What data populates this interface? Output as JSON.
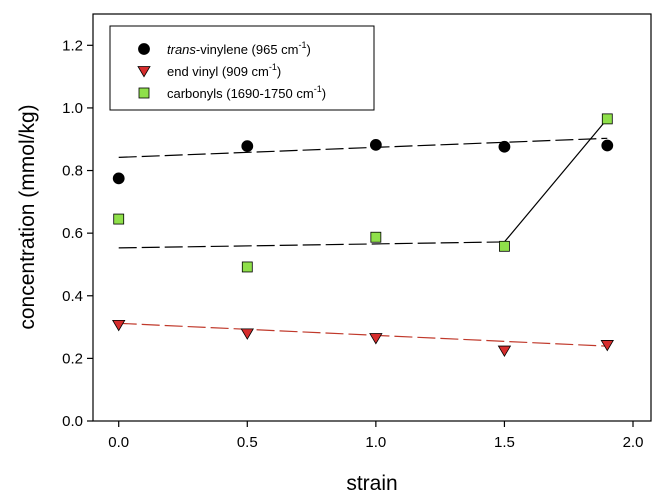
{
  "chart_data": {
    "type": "scatter",
    "xlabel": "strain",
    "ylabel": "concentration (mmol/kg)",
    "xlim": [
      -0.1,
      2.07
    ],
    "ylim": [
      0.0,
      1.3
    ],
    "x_ticks": [
      0.0,
      0.5,
      1.0,
      1.5,
      2.0
    ],
    "x_tick_labels": [
      "0.0",
      "0.5",
      "1.0",
      "1.5",
      "2.0"
    ],
    "y_ticks": [
      0.0,
      0.2,
      0.4,
      0.6,
      0.8,
      1.0,
      1.2
    ],
    "y_tick_labels": [
      "0.0",
      "0.2",
      "0.4",
      "0.6",
      "0.8",
      "1.0",
      "1.2"
    ],
    "grid": false,
    "legend_position": "top-left",
    "series": [
      {
        "name_italic": "trans",
        "name_main": "-vinylene (965 cm",
        "name_sup": "-1",
        "name_tail": ")",
        "marker": "circle",
        "color": "#000000",
        "x": [
          0.0,
          0.5,
          1.0,
          1.5,
          1.9
        ],
        "y": [
          0.775,
          0.878,
          0.882,
          0.876,
          0.88
        ],
        "fit_line": {
          "x": [
            0.0,
            1.9
          ],
          "y": [
            0.842,
            0.903
          ],
          "color": "#000000",
          "style": "long-dash"
        }
      },
      {
        "name_italic": "",
        "name_main": "end vinyl (909 cm",
        "name_sup": "-1",
        "name_tail": ")",
        "marker": "triangle-down",
        "color": "#d62d2d",
        "x": [
          0.0,
          0.5,
          1.0,
          1.5,
          1.9
        ],
        "y": [
          0.307,
          0.28,
          0.265,
          0.225,
          0.243
        ],
        "fit_line": {
          "x": [
            0.0,
            1.9
          ],
          "y": [
            0.312,
            0.239
          ],
          "color": "#c0392b",
          "style": "long-dash"
        }
      },
      {
        "name_italic": "",
        "name_main": "carbonyls (1690-1750 cm",
        "name_sup": "-1",
        "name_tail": ")",
        "marker": "square",
        "color": "#8fe04a",
        "x": [
          0.0,
          0.5,
          1.0,
          1.5,
          1.9
        ],
        "y": [
          0.645,
          0.492,
          0.587,
          0.558,
          0.965
        ],
        "fit_line": {
          "x": [
            0.0,
            1.5
          ],
          "y": [
            0.553,
            0.572
          ],
          "color": "#000000",
          "style": "long-dash"
        },
        "connector": {
          "x": [
            1.5,
            1.9
          ],
          "y": [
            0.572,
            0.965
          ],
          "color": "#000000",
          "style": "solid"
        }
      }
    ]
  }
}
